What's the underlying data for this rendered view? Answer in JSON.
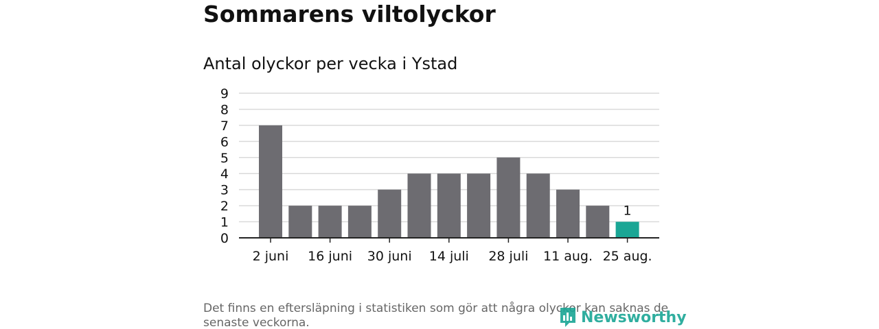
{
  "header": {
    "title": "Sommarens viltolyckor",
    "subtitle": "Antal olyckor per vecka i Ystad"
  },
  "footer": {
    "note": "Det finns en eftersläpning i statistiken som gör att några olyckor kan saknas de senaste veckorna.",
    "logo_text": "Newsworthy"
  },
  "colors": {
    "bar": "#6d6c71",
    "highlight": "#1aa695",
    "grid": "#d9d9d9",
    "axis": "#222222",
    "text": "#111111"
  },
  "chart_data": {
    "type": "bar",
    "title": "Antal olyckor per vecka i Ystad",
    "xlabel": "",
    "ylabel": "",
    "ylim": [
      0,
      9
    ],
    "yticks": [
      0,
      1,
      2,
      3,
      4,
      5,
      6,
      7,
      8,
      9
    ],
    "grid": true,
    "legend": "none",
    "tick_labels": [
      "2 juni",
      "16 juni",
      "30 juni",
      "14 juli",
      "28 juli",
      "11 aug.",
      "25 aug."
    ],
    "values": [
      7,
      2,
      2,
      2,
      3,
      4,
      4,
      4,
      5,
      4,
      3,
      2,
      1
    ],
    "highlight_index": 12,
    "data_labels": [
      {
        "index": 12,
        "text": "1"
      }
    ]
  }
}
